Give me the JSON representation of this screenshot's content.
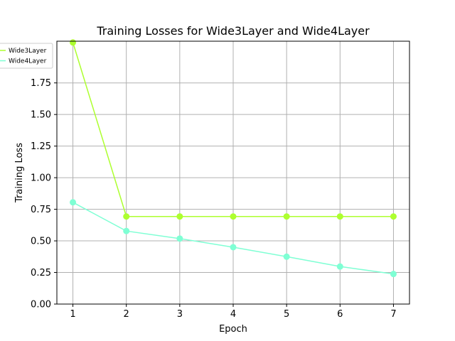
{
  "chart_data": {
    "type": "line",
    "title": "Training Losses for Wide3Layer and Wide4Layer",
    "xlabel": "Epoch",
    "ylabel": "Training Loss",
    "x": [
      1,
      2,
      3,
      4,
      5,
      6,
      7
    ],
    "xticks": [
      "1",
      "2",
      "3",
      "4",
      "5",
      "6",
      "7"
    ],
    "yticks": [
      "0.00",
      "0.25",
      "0.50",
      "0.75",
      "1.00",
      "1.25",
      "1.50",
      "1.75"
    ],
    "xlim": [
      0.7,
      7.3
    ],
    "ylim": [
      0,
      2.08
    ],
    "grid": true,
    "legend_position": "upper-left",
    "series": [
      {
        "name": "Wide3Layer",
        "color": "#adff2f",
        "values": [
          2.07,
          0.693,
          0.693,
          0.693,
          0.693,
          0.693,
          0.693
        ]
      },
      {
        "name": "Wide4Layer",
        "color": "#7fffd4",
        "values": [
          0.805,
          0.578,
          0.518,
          0.45,
          0.375,
          0.297,
          0.238
        ]
      }
    ]
  }
}
